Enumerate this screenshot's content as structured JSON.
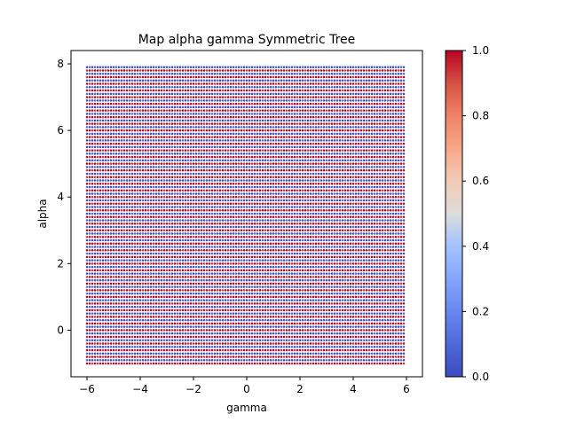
{
  "chart_data": {
    "type": "scatter",
    "title": "Map alpha gamma Symmetric Tree",
    "xlabel": "gamma",
    "ylabel": "alpha",
    "xlim": [
      -6.6,
      6.6
    ],
    "ylim": [
      -1.4,
      8.4
    ],
    "x_ticks": [
      -6,
      -4,
      -2,
      0,
      2,
      4,
      6
    ],
    "y_ticks": [
      0,
      2,
      4,
      6,
      8
    ],
    "x_tick_labels": [
      "−6",
      "−4",
      "−2",
      "0",
      "2",
      "4",
      "6"
    ],
    "y_tick_labels": [
      "0",
      "2",
      "4",
      "6",
      "8"
    ],
    "grid": false,
    "colormap": "coolwarm",
    "color_range": [
      0,
      1
    ],
    "colorbar_ticks": [
      0.0,
      0.2,
      0.4,
      0.6,
      0.8,
      1.0
    ],
    "colorbar_tick_labels": [
      "0.0",
      "0.2",
      "0.4",
      "0.6",
      "0.8",
      "1.0"
    ],
    "points": {
      "x_range": [
        -6,
        5.9
      ],
      "x_step": 0.1,
      "y_range": [
        -1,
        7.9
      ],
      "y_step": 0.1,
      "value_pattern": "alternating rows of values near 1.0 (red) and near 0.0 (blue) across the whole grid"
    },
    "colors": {
      "low": "#3b4cc0",
      "mid": "#dddddd",
      "high": "#b40426"
    }
  }
}
